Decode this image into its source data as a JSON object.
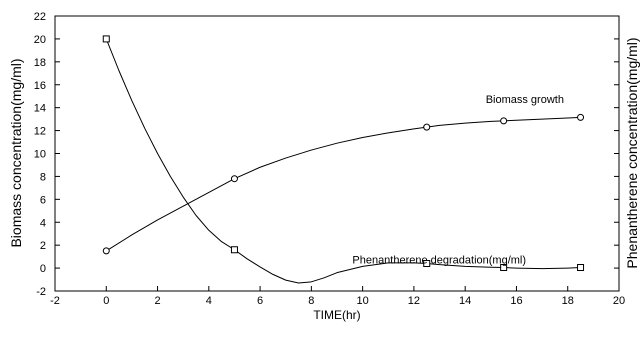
{
  "chart_data": {
    "type": "line",
    "title": "",
    "xlabel": "TIME(hr)",
    "ylabel": "Biomass concentration(mg/ml)",
    "y2label": "Phenantherene concentration(mg/ml)",
    "xlim": [
      -2,
      20
    ],
    "ylim": [
      -2,
      22
    ],
    "xticks": [
      "-2",
      "0",
      "2",
      "4",
      "6",
      "8",
      "10",
      "12",
      "14",
      "16",
      "18",
      "20"
    ],
    "yticks": [
      "-2",
      "0",
      "2",
      "4",
      "6",
      "8",
      "10",
      "12",
      "14",
      "16",
      "18",
      "20",
      "22"
    ],
    "grid": false,
    "series": [
      {
        "name": "Biomass growth",
        "marker": "circle",
        "x": [
          0,
          5,
          12.5,
          15.5,
          18.5
        ],
        "y": [
          1.5,
          7.8,
          12.3,
          12.85,
          13.15
        ],
        "curve": [
          [
            0,
            1.5
          ],
          [
            1,
            2.9
          ],
          [
            2,
            4.2
          ],
          [
            3,
            5.4
          ],
          [
            4,
            6.6
          ],
          [
            5,
            7.8
          ],
          [
            6,
            8.8
          ],
          [
            7,
            9.6
          ],
          [
            8,
            10.3
          ],
          [
            9,
            10.9
          ],
          [
            10,
            11.4
          ],
          [
            11,
            11.8
          ],
          [
            12,
            12.15
          ],
          [
            12.5,
            12.3
          ],
          [
            13,
            12.45
          ],
          [
            14,
            12.65
          ],
          [
            15,
            12.8
          ],
          [
            15.5,
            12.85
          ],
          [
            16,
            12.9
          ],
          [
            17,
            13.0
          ],
          [
            18,
            13.1
          ],
          [
            18.5,
            13.15
          ]
        ]
      },
      {
        "name": "Phenanthrene degradation(mg/ml)",
        "marker": "square",
        "x": [
          0,
          5,
          12.5,
          15.5,
          18.5
        ],
        "y": [
          20,
          1.6,
          0.4,
          0.05,
          0.05
        ],
        "curve": [
          [
            0,
            20
          ],
          [
            0.5,
            17.2
          ],
          [
            1,
            14.6
          ],
          [
            1.5,
            12.2
          ],
          [
            2,
            10.0
          ],
          [
            2.5,
            8.0
          ],
          [
            3,
            6.2
          ],
          [
            3.5,
            4.6
          ],
          [
            4,
            3.3
          ],
          [
            4.5,
            2.3
          ],
          [
            5,
            1.6
          ],
          [
            5.5,
            0.8
          ],
          [
            6,
            0.1
          ],
          [
            6.5,
            -0.55
          ],
          [
            7,
            -1.05
          ],
          [
            7.5,
            -1.3
          ],
          [
            8,
            -1.2
          ],
          [
            8.5,
            -0.85
          ],
          [
            9,
            -0.4
          ],
          [
            10,
            0.15
          ],
          [
            11,
            0.45
          ],
          [
            12,
            0.45
          ],
          [
            12.5,
            0.4
          ],
          [
            13,
            0.3
          ],
          [
            14,
            0.15
          ],
          [
            15,
            0.07
          ],
          [
            15.5,
            0.05
          ],
          [
            16,
            0.0
          ],
          [
            17,
            -0.05
          ],
          [
            18,
            0.0
          ],
          [
            18.5,
            0.05
          ]
        ]
      }
    ],
    "annotations": [
      {
        "text": "Biomass growth",
        "x": 14.8,
        "y": 14.4
      },
      {
        "text": "Phenantherene degradation(mg/ml)",
        "x": 9.6,
        "y": 0.4
      }
    ]
  }
}
